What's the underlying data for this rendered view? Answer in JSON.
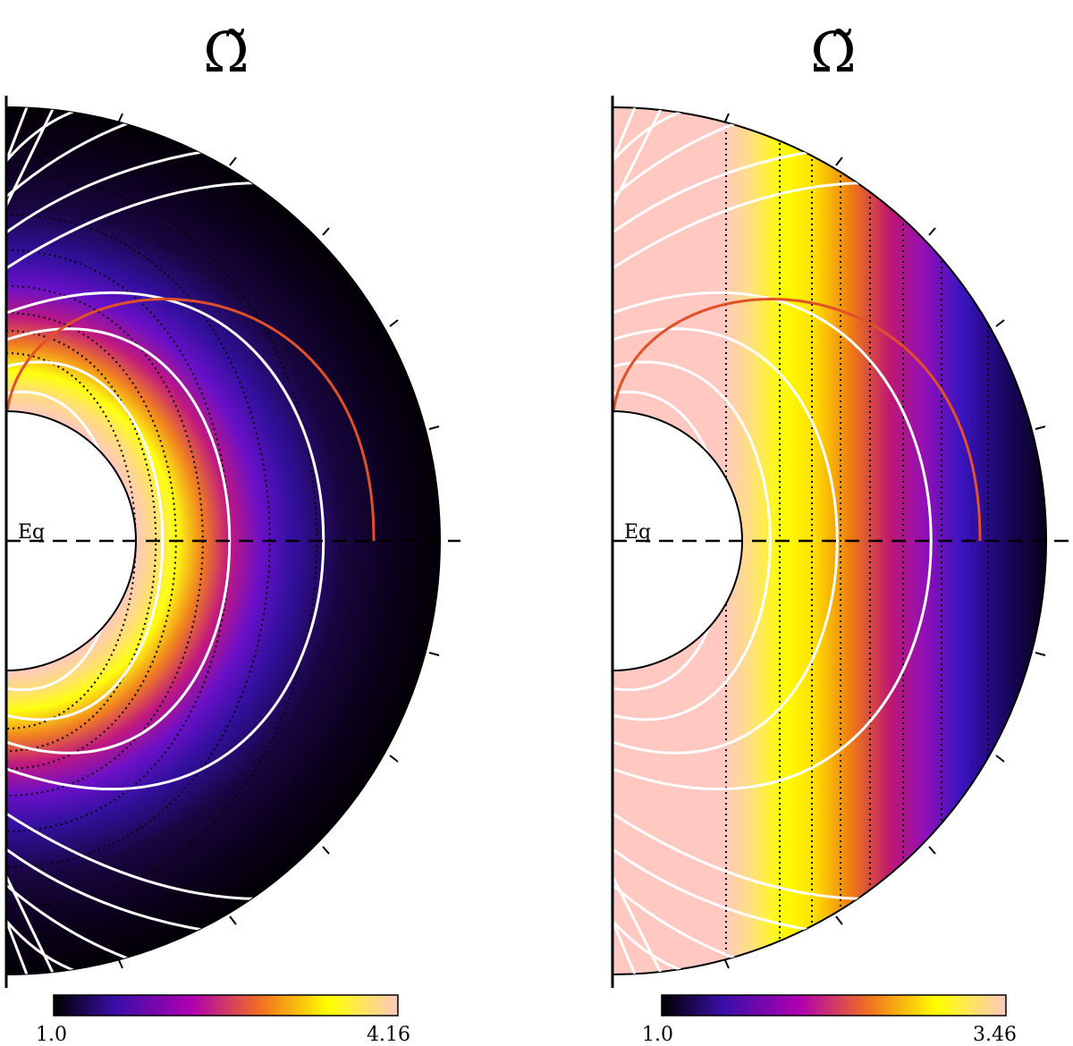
{
  "panels": [
    {
      "title": "Ω̃",
      "equator_label": "Eq",
      "colorbar": {
        "min_label": "1.0",
        "max_label": "4.16",
        "min": 1.0,
        "max": 4.16
      },
      "colormap": [
        "#000000",
        "#3a0ea8",
        "#b000b0",
        "#f07020",
        "#ffff00",
        "#ffc8c0"
      ],
      "field_line_color": "#ffffff",
      "last_closed_line_color": "#e0502a",
      "contour_style": "dotted",
      "shading": "radial-peak-near-core"
    },
    {
      "title": "Ω̃",
      "equator_label": "Eq",
      "colorbar": {
        "min_label": "1.0",
        "max_label": "3.46",
        "min": 1.0,
        "max": 3.46
      },
      "colormap": [
        "#000000",
        "#3a0ea8",
        "#b000b0",
        "#f07020",
        "#ffff00",
        "#ffc8c0"
      ],
      "field_line_color": "#ffffff",
      "last_closed_line_color": "#e0502a",
      "contour_style": "dotted-vertical",
      "shading": "cylindrical-decreasing-outward"
    }
  ]
}
